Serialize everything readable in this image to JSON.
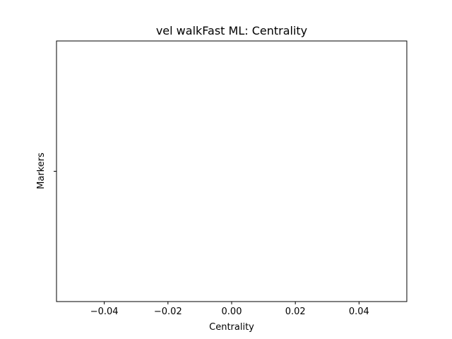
{
  "chart_data": {
    "type": "barh",
    "title": "vel walkFast ML: Centrality",
    "xlabel": "Centrality",
    "ylabel": "Markers",
    "categories": [
      null
    ],
    "values": [
      null
    ],
    "color": "#1f77b4",
    "xlim": [
      -0.055,
      0.055
    ],
    "xticks": [
      {
        "value": -0.04,
        "label": "−0.04"
      },
      {
        "value": -0.02,
        "label": "−0.02"
      },
      {
        "value": 0,
        "label": "0.00"
      },
      {
        "value": 0.02,
        "label": "0.02"
      },
      {
        "value": 0.04,
        "label": "0.04"
      }
    ],
    "grid": false
  }
}
